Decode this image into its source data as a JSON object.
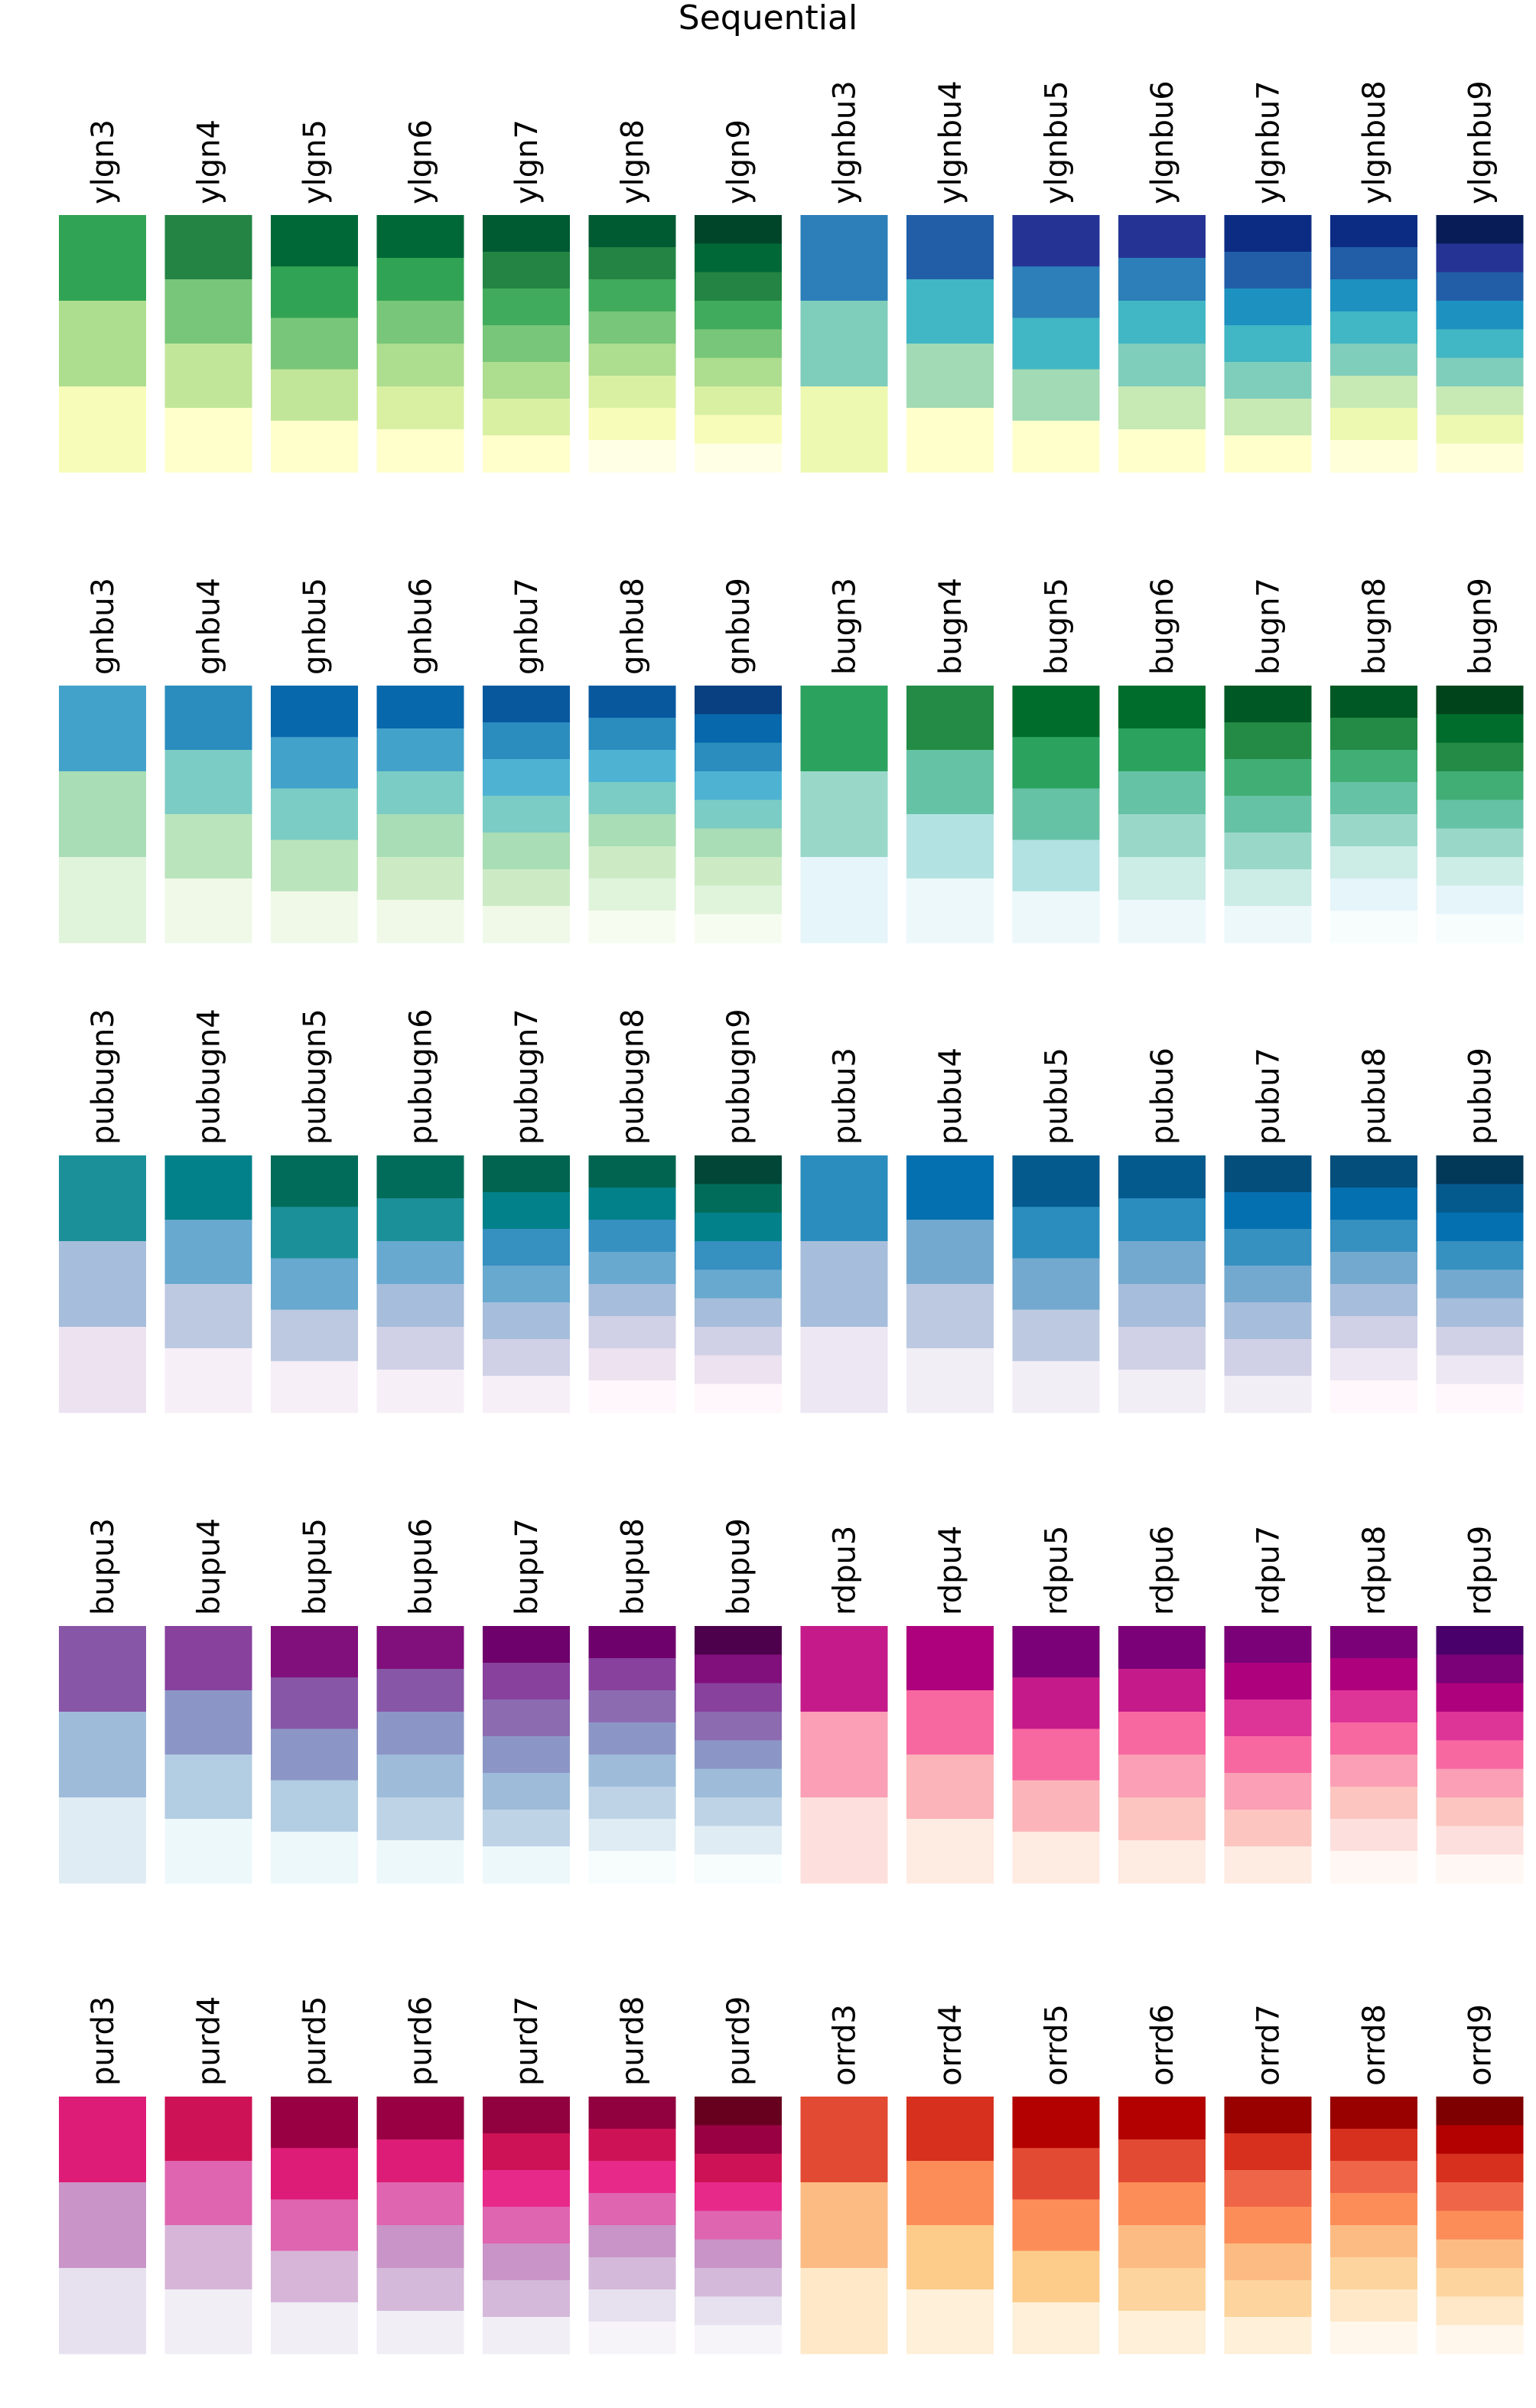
{
  "chart_data": {
    "type": "heatmap",
    "title": "Sequential",
    "rows": [
      [
        {
          "name": "ylgn3",
          "colors": [
            "#31a354",
            "#addd8e",
            "#f7fcb9"
          ]
        },
        {
          "name": "ylgn4",
          "colors": [
            "#238443",
            "#78c679",
            "#c2e699",
            "#ffffcc"
          ]
        },
        {
          "name": "ylgn5",
          "colors": [
            "#006837",
            "#31a354",
            "#78c679",
            "#c2e699",
            "#ffffcc"
          ]
        },
        {
          "name": "ylgn6",
          "colors": [
            "#006837",
            "#31a354",
            "#78c679",
            "#addd8e",
            "#d9f0a3",
            "#ffffcc"
          ]
        },
        {
          "name": "ylgn7",
          "colors": [
            "#005a32",
            "#238443",
            "#41ab5d",
            "#78c679",
            "#addd8e",
            "#d9f0a3",
            "#ffffcc"
          ]
        },
        {
          "name": "ylgn8",
          "colors": [
            "#005a32",
            "#238443",
            "#41ab5d",
            "#78c679",
            "#addd8e",
            "#d9f0a3",
            "#f7fcb9",
            "#ffffe5"
          ]
        },
        {
          "name": "ylgn9",
          "colors": [
            "#004529",
            "#006837",
            "#238443",
            "#41ab5d",
            "#78c679",
            "#addd8e",
            "#d9f0a3",
            "#f7fcb9",
            "#ffffe5"
          ]
        },
        {
          "name": "ylgnbu3",
          "colors": [
            "#2c7fb8",
            "#7fcdbb",
            "#edf8b1"
          ]
        },
        {
          "name": "ylgnbu4",
          "colors": [
            "#225ea8",
            "#41b6c4",
            "#a1dab4",
            "#ffffcc"
          ]
        },
        {
          "name": "ylgnbu5",
          "colors": [
            "#253494",
            "#2c7fb8",
            "#41b6c4",
            "#a1dab4",
            "#ffffcc"
          ]
        },
        {
          "name": "ylgnbu6",
          "colors": [
            "#253494",
            "#2c7fb8",
            "#41b6c4",
            "#7fcdbb",
            "#c7e9b4",
            "#ffffcc"
          ]
        },
        {
          "name": "ylgnbu7",
          "colors": [
            "#0c2c84",
            "#225ea8",
            "#1d91c0",
            "#41b6c4",
            "#7fcdbb",
            "#c7e9b4",
            "#ffffcc"
          ]
        },
        {
          "name": "ylgnbu8",
          "colors": [
            "#0c2c84",
            "#225ea8",
            "#1d91c0",
            "#41b6c4",
            "#7fcdbb",
            "#c7e9b4",
            "#edf8b1",
            "#ffffd9"
          ]
        },
        {
          "name": "ylgnbu9",
          "colors": [
            "#081d58",
            "#253494",
            "#225ea8",
            "#1d91c0",
            "#41b6c4",
            "#7fcdbb",
            "#c7e9b4",
            "#edf8b1",
            "#ffffd9"
          ]
        }
      ],
      [
        {
          "name": "gnbu3",
          "colors": [
            "#43a2ca",
            "#a8ddb5",
            "#e0f3db"
          ]
        },
        {
          "name": "gnbu4",
          "colors": [
            "#2b8cbe",
            "#7bccc4",
            "#bae4bc",
            "#f0f9e8"
          ]
        },
        {
          "name": "gnbu5",
          "colors": [
            "#0868ac",
            "#43a2ca",
            "#7bccc4",
            "#bae4bc",
            "#f0f9e8"
          ]
        },
        {
          "name": "gnbu6",
          "colors": [
            "#0868ac",
            "#43a2ca",
            "#7bccc4",
            "#a8ddb5",
            "#ccebc5",
            "#f0f9e8"
          ]
        },
        {
          "name": "gnbu7",
          "colors": [
            "#08589e",
            "#2b8cbe",
            "#4eb3d3",
            "#7bccc4",
            "#a8ddb5",
            "#ccebc5",
            "#f0f9e8"
          ]
        },
        {
          "name": "gnbu8",
          "colors": [
            "#08589e",
            "#2b8cbe",
            "#4eb3d3",
            "#7bccc4",
            "#a8ddb5",
            "#ccebc5",
            "#e0f3db",
            "#f7fcf0"
          ]
        },
        {
          "name": "gnbu9",
          "colors": [
            "#084081",
            "#0868ac",
            "#2b8cbe",
            "#4eb3d3",
            "#7bccc4",
            "#a8ddb5",
            "#ccebc5",
            "#e0f3db",
            "#f7fcf0"
          ]
        },
        {
          "name": "bugn3",
          "colors": [
            "#2ca25f",
            "#99d8c9",
            "#e5f5f9"
          ]
        },
        {
          "name": "bugn4",
          "colors": [
            "#238b45",
            "#66c2a4",
            "#b2e2e2",
            "#edf8fb"
          ]
        },
        {
          "name": "bugn5",
          "colors": [
            "#006d2c",
            "#2ca25f",
            "#66c2a4",
            "#b2e2e2",
            "#edf8fb"
          ]
        },
        {
          "name": "bugn6",
          "colors": [
            "#006d2c",
            "#2ca25f",
            "#66c2a4",
            "#99d8c9",
            "#ccece6",
            "#edf8fb"
          ]
        },
        {
          "name": "bugn7",
          "colors": [
            "#005824",
            "#238b45",
            "#41ae76",
            "#66c2a4",
            "#99d8c9",
            "#ccece6",
            "#edf8fb"
          ]
        },
        {
          "name": "bugn8",
          "colors": [
            "#005824",
            "#238b45",
            "#41ae76",
            "#66c2a4",
            "#99d8c9",
            "#ccece6",
            "#e5f5f9",
            "#f7fcfd"
          ]
        },
        {
          "name": "bugn9",
          "colors": [
            "#00441b",
            "#006d2c",
            "#238b45",
            "#41ae76",
            "#66c2a4",
            "#99d8c9",
            "#ccece6",
            "#e5f5f9",
            "#f7fcfd"
          ]
        }
      ],
      [
        {
          "name": "pubugn3",
          "colors": [
            "#1c9099",
            "#a6bddb",
            "#ece2f0"
          ]
        },
        {
          "name": "pubugn4",
          "colors": [
            "#02818a",
            "#67a9cf",
            "#bdc9e1",
            "#f6eff7"
          ]
        },
        {
          "name": "pubugn5",
          "colors": [
            "#016c59",
            "#1c9099",
            "#67a9cf",
            "#bdc9e1",
            "#f6eff7"
          ]
        },
        {
          "name": "pubugn6",
          "colors": [
            "#016c59",
            "#1c9099",
            "#67a9cf",
            "#a6bddb",
            "#d0d1e6",
            "#f6eff7"
          ]
        },
        {
          "name": "pubugn7",
          "colors": [
            "#016450",
            "#02818a",
            "#3690c0",
            "#67a9cf",
            "#a6bddb",
            "#d0d1e6",
            "#f6eff7"
          ]
        },
        {
          "name": "pubugn8",
          "colors": [
            "#016450",
            "#02818a",
            "#3690c0",
            "#67a9cf",
            "#a6bddb",
            "#d0d1e6",
            "#ece2f0",
            "#fff7fb"
          ]
        },
        {
          "name": "pubugn9",
          "colors": [
            "#014636",
            "#016c59",
            "#02818a",
            "#3690c0",
            "#67a9cf",
            "#a6bddb",
            "#d0d1e6",
            "#ece2f0",
            "#fff7fb"
          ]
        },
        {
          "name": "pubu3",
          "colors": [
            "#2b8cbe",
            "#a6bddb",
            "#ece7f2"
          ]
        },
        {
          "name": "pubu4",
          "colors": [
            "#0570b0",
            "#74a9cf",
            "#bdc9e1",
            "#f1eef6"
          ]
        },
        {
          "name": "pubu5",
          "colors": [
            "#045a8d",
            "#2b8cbe",
            "#74a9cf",
            "#bdc9e1",
            "#f1eef6"
          ]
        },
        {
          "name": "pubu6",
          "colors": [
            "#045a8d",
            "#2b8cbe",
            "#74a9cf",
            "#a6bddb",
            "#d0d1e6",
            "#f1eef6"
          ]
        },
        {
          "name": "pubu7",
          "colors": [
            "#034e7b",
            "#0570b0",
            "#3690c0",
            "#74a9cf",
            "#a6bddb",
            "#d0d1e6",
            "#f1eef6"
          ]
        },
        {
          "name": "pubu8",
          "colors": [
            "#034e7b",
            "#0570b0",
            "#3690c0",
            "#74a9cf",
            "#a6bddb",
            "#d0d1e6",
            "#ece7f2",
            "#fff7fb"
          ]
        },
        {
          "name": "pubu9",
          "colors": [
            "#023858",
            "#045a8d",
            "#0570b0",
            "#3690c0",
            "#74a9cf",
            "#a6bddb",
            "#d0d1e6",
            "#ece7f2",
            "#fff7fb"
          ]
        }
      ],
      [
        {
          "name": "bupu3",
          "colors": [
            "#8856a7",
            "#9ebcda",
            "#e0ecf4"
          ]
        },
        {
          "name": "bupu4",
          "colors": [
            "#88419d",
            "#8c96c6",
            "#b3cde3",
            "#edf8fb"
          ]
        },
        {
          "name": "bupu5",
          "colors": [
            "#810f7c",
            "#8856a7",
            "#8c96c6",
            "#b3cde3",
            "#edf8fb"
          ]
        },
        {
          "name": "bupu6",
          "colors": [
            "#810f7c",
            "#8856a7",
            "#8c96c6",
            "#9ebcda",
            "#bfd3e6",
            "#edf8fb"
          ]
        },
        {
          "name": "bupu7",
          "colors": [
            "#6e016b",
            "#88419d",
            "#8c6bb1",
            "#8c96c6",
            "#9ebcda",
            "#bfd3e6",
            "#edf8fb"
          ]
        },
        {
          "name": "bupu8",
          "colors": [
            "#6e016b",
            "#88419d",
            "#8c6bb1",
            "#8c96c6",
            "#9ebcda",
            "#bfd3e6",
            "#e0ecf4",
            "#f7fcfd"
          ]
        },
        {
          "name": "bupu9",
          "colors": [
            "#4d004b",
            "#810f7c",
            "#88419d",
            "#8c6bb1",
            "#8c96c6",
            "#9ebcda",
            "#bfd3e6",
            "#e0ecf4",
            "#f7fcfd"
          ]
        },
        {
          "name": "rdpu3",
          "colors": [
            "#c51b8a",
            "#fa9fb5",
            "#fde0dd"
          ]
        },
        {
          "name": "rdpu4",
          "colors": [
            "#ae017e",
            "#f768a1",
            "#fbb4b9",
            "#feebe2"
          ]
        },
        {
          "name": "rdpu5",
          "colors": [
            "#7a0177",
            "#c51b8a",
            "#f768a1",
            "#fbb4b9",
            "#feebe2"
          ]
        },
        {
          "name": "rdpu6",
          "colors": [
            "#7a0177",
            "#c51b8a",
            "#f768a1",
            "#fa9fb5",
            "#fcc5c0",
            "#feebe2"
          ]
        },
        {
          "name": "rdpu7",
          "colors": [
            "#7a0177",
            "#ae017e",
            "#dd3497",
            "#f768a1",
            "#fa9fb5",
            "#fcc5c0",
            "#feebe2"
          ]
        },
        {
          "name": "rdpu8",
          "colors": [
            "#7a0177",
            "#ae017e",
            "#dd3497",
            "#f768a1",
            "#fa9fb5",
            "#fcc5c0",
            "#fde0dd",
            "#fff7f3"
          ]
        },
        {
          "name": "rdpu9",
          "colors": [
            "#49006a",
            "#7a0177",
            "#ae017e",
            "#dd3497",
            "#f768a1",
            "#fa9fb5",
            "#fcc5c0",
            "#fde0dd",
            "#fff7f3"
          ]
        }
      ],
      [
        {
          "name": "purd3",
          "colors": [
            "#dd1c77",
            "#c994c7",
            "#e7e1ef"
          ]
        },
        {
          "name": "purd4",
          "colors": [
            "#ce1256",
            "#df65b0",
            "#d7b5d8",
            "#f1eef6"
          ]
        },
        {
          "name": "purd5",
          "colors": [
            "#980043",
            "#dd1c77",
            "#df65b0",
            "#d7b5d8",
            "#f1eef6"
          ]
        },
        {
          "name": "purd6",
          "colors": [
            "#980043",
            "#dd1c77",
            "#df65b0",
            "#c994c7",
            "#d4b9da",
            "#f1eef6"
          ]
        },
        {
          "name": "purd7",
          "colors": [
            "#91003f",
            "#ce1256",
            "#e7298a",
            "#df65b0",
            "#c994c7",
            "#d4b9da",
            "#f1eef6"
          ]
        },
        {
          "name": "purd8",
          "colors": [
            "#91003f",
            "#ce1256",
            "#e7298a",
            "#df65b0",
            "#c994c7",
            "#d4b9da",
            "#e7e1ef",
            "#f7f4f9"
          ]
        },
        {
          "name": "purd9",
          "colors": [
            "#67001f",
            "#980043",
            "#ce1256",
            "#e7298a",
            "#df65b0",
            "#c994c7",
            "#d4b9da",
            "#e7e1ef",
            "#f7f4f9"
          ]
        },
        {
          "name": "orrd3",
          "colors": [
            "#e34a33",
            "#fdbb84",
            "#fee8c8"
          ]
        },
        {
          "name": "orrd4",
          "colors": [
            "#d7301f",
            "#fc8d59",
            "#fdcc8a",
            "#fef0d9"
          ]
        },
        {
          "name": "orrd5",
          "colors": [
            "#b30000",
            "#e34a33",
            "#fc8d59",
            "#fdcc8a",
            "#fef0d9"
          ]
        },
        {
          "name": "orrd6",
          "colors": [
            "#b30000",
            "#e34a33",
            "#fc8d59",
            "#fdbb84",
            "#fdd49e",
            "#fef0d9"
          ]
        },
        {
          "name": "orrd7",
          "colors": [
            "#990000",
            "#d7301f",
            "#ef6548",
            "#fc8d59",
            "#fdbb84",
            "#fdd49e",
            "#fef0d9"
          ]
        },
        {
          "name": "orrd8",
          "colors": [
            "#990000",
            "#d7301f",
            "#ef6548",
            "#fc8d59",
            "#fdbb84",
            "#fdd49e",
            "#fee8c8",
            "#fff7ec"
          ]
        },
        {
          "name": "orrd9",
          "colors": [
            "#7f0000",
            "#b30000",
            "#d7301f",
            "#ef6548",
            "#fc8d59",
            "#fdbb84",
            "#fdd49e",
            "#fee8c8",
            "#fff7ec"
          ]
        }
      ]
    ]
  }
}
